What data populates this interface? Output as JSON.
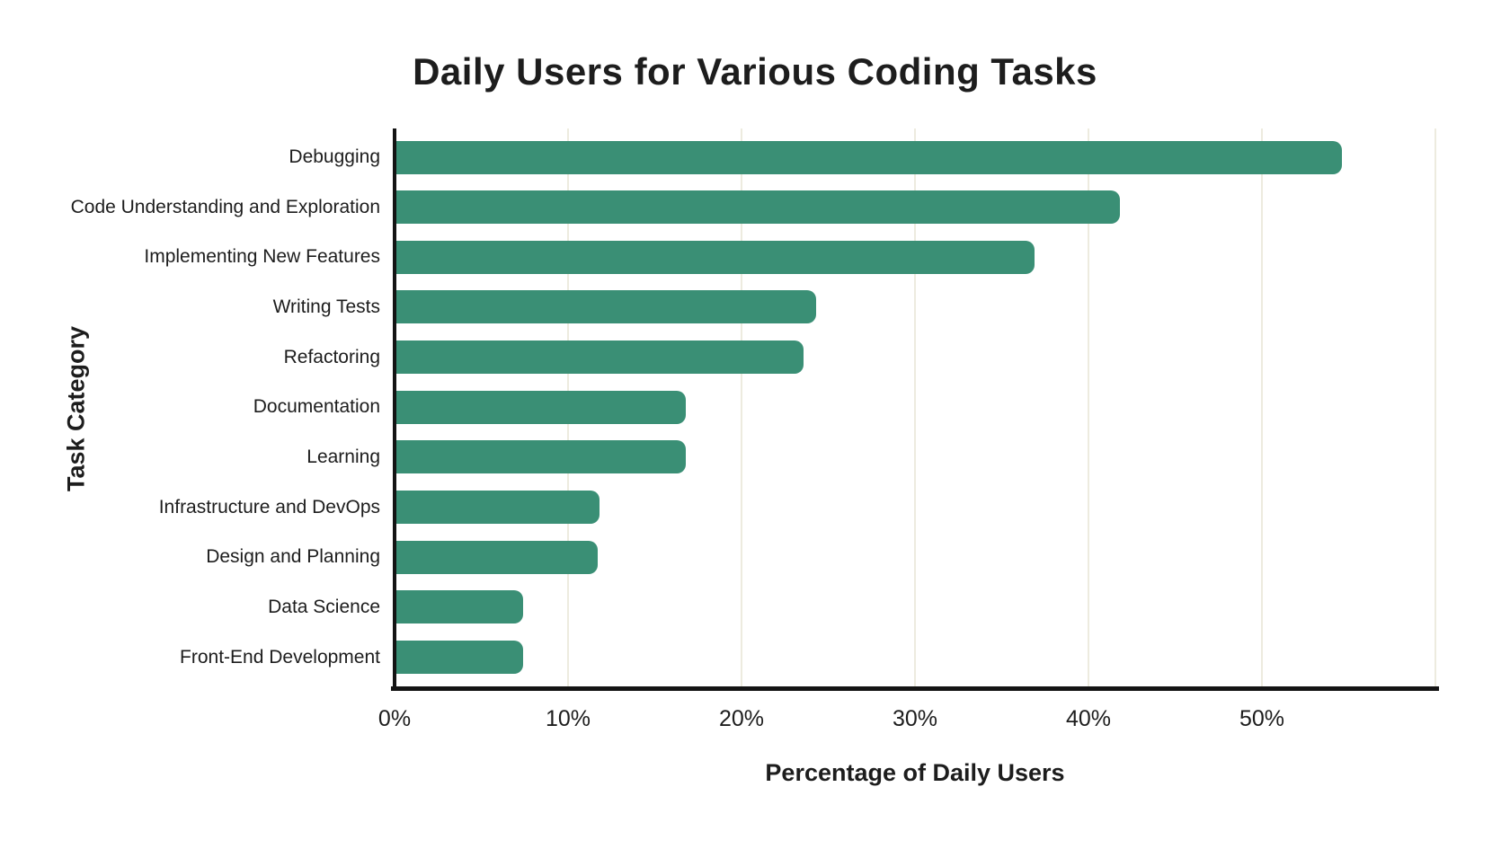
{
  "title": "Daily Users for Various Coding Tasks",
  "chart_data": {
    "type": "bar",
    "orientation": "horizontal",
    "title": "Daily Users for Various Coding Tasks",
    "xlabel": "Percentage of Daily Users",
    "ylabel": "Task Category",
    "categories": [
      "Debugging",
      "Code Understanding and Exploration",
      "Implementing New Features",
      "Writing Tests",
      "Refactoring",
      "Documentation",
      "Learning",
      "Infrastructure and DevOps",
      "Design and Planning",
      "Data Science",
      "Front-End Development"
    ],
    "values": [
      54.6,
      41.8,
      36.9,
      24.3,
      23.6,
      16.8,
      16.8,
      11.8,
      11.7,
      7.4,
      7.4
    ],
    "x_ticks": [
      "0%",
      "10%",
      "20%",
      "30%",
      "40%",
      "50%"
    ],
    "x_tick_values": [
      0,
      10,
      20,
      30,
      40,
      50
    ],
    "xlim": [
      0,
      60
    ],
    "grid": true,
    "legend": false,
    "colors": {
      "bar": "#3a8f75",
      "gridline": "#edebdf",
      "axis": "#141414",
      "text": "#1d1d1d",
      "background": "#ffffff"
    }
  }
}
